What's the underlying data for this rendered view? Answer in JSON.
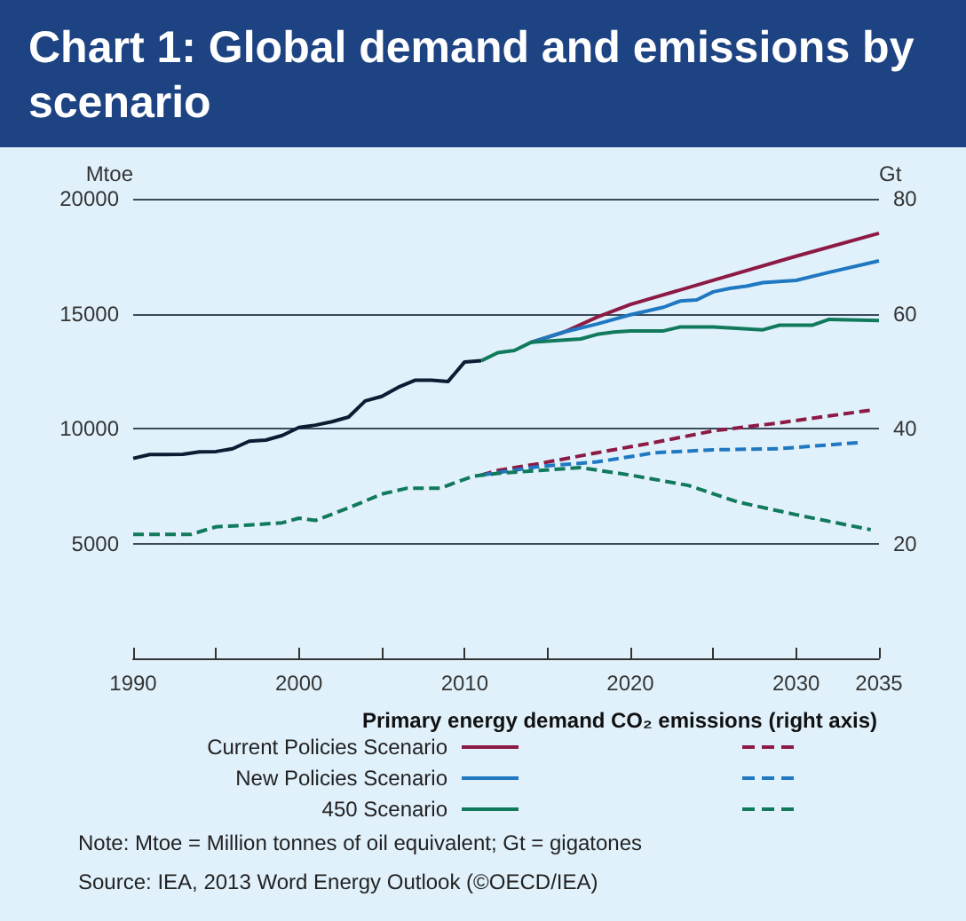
{
  "chart_data": {
    "type": "line",
    "title": "Chart 1: Global demand and emissions by scenario",
    "ylabel": "Mtoe",
    "y2label": "Gt",
    "xlim": [
      1990,
      2035
    ],
    "xticks": [
      1990,
      {
        "value": 1995,
        "label": null
      },
      2000,
      {
        "value": 2005,
        "label": null
      },
      2010,
      {
        "value": 2015,
        "label": null
      },
      2020,
      {
        "value": 2025,
        "label": null
      },
      2030,
      2035
    ],
    "ylim": [
      0,
      20000
    ],
    "yticks": [
      {
        "value": 5000,
        "label": "5000"
      },
      {
        "value": 10000,
        "label": "10000"
      },
      {
        "value": 15000,
        "label": "15000"
      },
      {
        "value": 20000,
        "label": "20000"
      }
    ],
    "y2lim": [
      0,
      80
    ],
    "y2ticks": [
      20,
      40,
      60,
      80
    ],
    "grid": "y",
    "legend": "bottom",
    "series": [
      {
        "color": "#0d1b33",
        "line_style": "solid",
        "x": [
          1990,
          1991,
          1992,
          1993,
          1994,
          1995,
          1996,
          1997,
          1998,
          1999,
          2000,
          2001,
          2002,
          2003,
          2004,
          2005,
          2006,
          2007,
          2008,
          2009,
          2010,
          2011
        ],
        "values": [
          8700,
          8870,
          8870,
          8880,
          8990,
          9000,
          9120,
          9450,
          9500,
          9700,
          10050,
          10150,
          10300,
          10500,
          11200,
          11400,
          11800,
          12100,
          12100,
          12050,
          12900,
          12950
        ]
      },
      {
        "name": "Current Policies Scenario",
        "color": "#8c1a44",
        "line_style": "solid",
        "x": [
          2014,
          2016,
          2018,
          2020,
          2025,
          2030,
          2035
        ],
        "values": [
          13750,
          14200,
          14850,
          15400,
          16450,
          17500,
          18500
        ]
      },
      {
        "name": "New Policies Scenario",
        "color": "#1f78c1",
        "line_style": "solid",
        "x": [
          2014,
          2016,
          2018,
          2020,
          2022,
          2023,
          2024,
          2025,
          2026,
          2027,
          2028,
          2029,
          2030,
          2032,
          2035
        ],
        "values": [
          13750,
          14200,
          14550,
          14950,
          15280,
          15550,
          15600,
          15950,
          16100,
          16200,
          16350,
          16400,
          16450,
          16800,
          17300
        ]
      },
      {
        "name": "450 Scenario",
        "color": "#117a5c",
        "line_style": "solid",
        "x": [
          2011,
          2012,
          2013,
          2014,
          2015,
          2016,
          2017,
          2018,
          2019,
          2020,
          2022,
          2023,
          2025,
          2028,
          2029,
          2031,
          2032,
          2035
        ],
        "values": [
          12950,
          13300,
          13400,
          13750,
          13800,
          13850,
          13900,
          14100,
          14200,
          14250,
          14250,
          14420,
          14420,
          14300,
          14500,
          14500,
          14750,
          14700
        ]
      },
      {
        "color": "#8c1a44",
        "line_style": "dashed",
        "axis": "y2",
        "x": [
          2011,
          2012,
          2014.5,
          2018,
          2021.5,
          2025,
          2029,
          2034.5
        ],
        "values": [
          31.9,
          32.7,
          33.9,
          35.8,
          37.6,
          39.6,
          41.0,
          43.2
        ]
      },
      {
        "color": "#1f78c1",
        "line_style": "dashed",
        "axis": "y2",
        "x": [
          2011,
          2014.5,
          2018,
          2021.5,
          2025,
          2029,
          2034
        ],
        "values": [
          31.9,
          33.4,
          34.2,
          35.8,
          36.3,
          36.5,
          37.6
        ]
      },
      {
        "color": "#117a5c",
        "line_style": "dashed",
        "axis": "y2",
        "x": [
          1990,
          1993.5,
          1995,
          1997,
          1999,
          2000,
          2001,
          2003,
          2005,
          2006.5,
          2008.5,
          2010.5,
          2012,
          2014.5,
          2017,
          2020,
          2023.5,
          2026.5,
          2030,
          2034.5
        ],
        "values": [
          21.6,
          21.6,
          22.9,
          23.2,
          23.6,
          24.4,
          24.0,
          26.2,
          28.6,
          29.6,
          29.6,
          31.7,
          32.2,
          32.7,
          33.2,
          31.9,
          30.1,
          27.2,
          25.0,
          22.4
        ]
      }
    ],
    "annotations": [
      "Primary energy demand",
      "CO₂ emissions (right axis)",
      "Note: Mtoe = Million tonnes of oil equivalent; Gt = gigatones",
      "Source: IEA, 2013 Word Energy Outlook (©OECD/IEA)"
    ]
  }
}
